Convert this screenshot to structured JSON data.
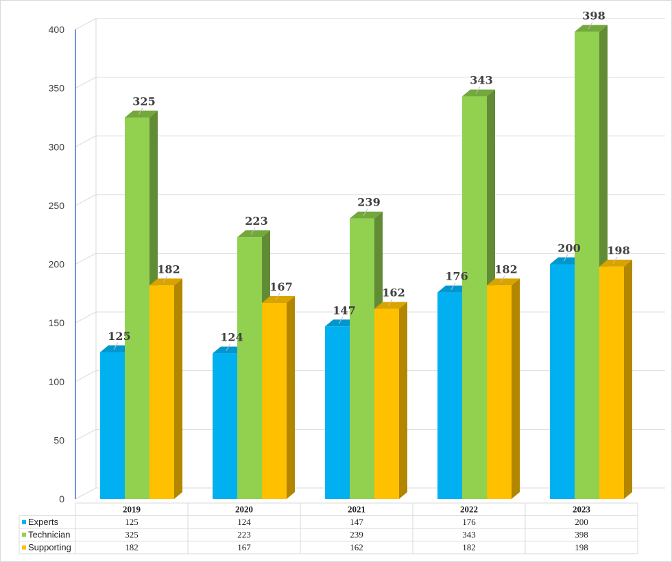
{
  "chart_data": {
    "type": "bar",
    "categories": [
      "2019",
      "2020",
      "2021",
      "2022",
      "2023"
    ],
    "series": [
      {
        "name": "Experts",
        "values": [
          125,
          124,
          147,
          176,
          200
        ],
        "color": "#00B0F0",
        "side": "#0082B4",
        "top": "#0097CF"
      },
      {
        "name": "Technician",
        "values": [
          325,
          223,
          239,
          343,
          398
        ],
        "color": "#92D050",
        "side": "#628B35",
        "top": "#72A83C"
      },
      {
        "name": "Supporting",
        "values": [
          182,
          167,
          162,
          182,
          198
        ],
        "color": "#FFC000",
        "side": "#B38600",
        "top": "#D9A300"
      }
    ],
    "ylim": [
      0,
      400
    ],
    "yticks": [
      0,
      50,
      100,
      150,
      200,
      250,
      300,
      350,
      400
    ],
    "grid": true,
    "data_labels": true,
    "data_table": true,
    "legend": "data-table"
  }
}
